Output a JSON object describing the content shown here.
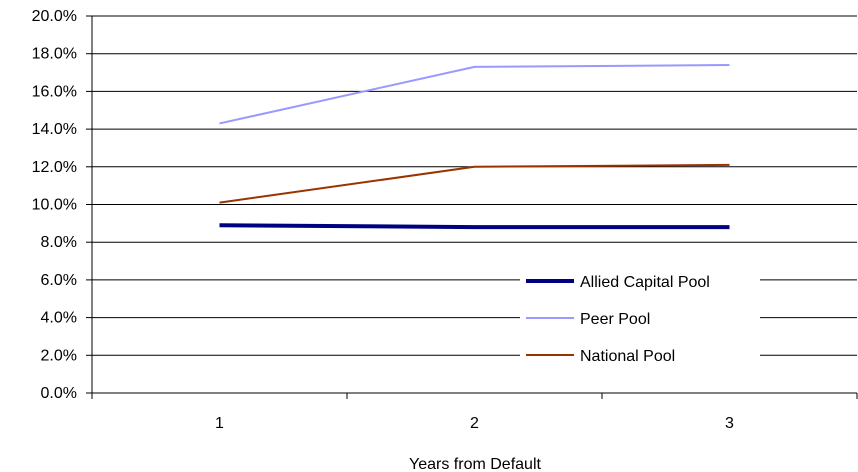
{
  "chart_data": {
    "type": "line",
    "title": "",
    "xlabel": "Years from Default",
    "ylabel": "",
    "categories": [
      "1",
      "2",
      "3"
    ],
    "ylim": [
      0,
      20
    ],
    "yticks": [
      "0.0%",
      "2.0%",
      "4.0%",
      "6.0%",
      "8.0%",
      "10.0%",
      "12.0%",
      "14.0%",
      "16.0%",
      "18.0%",
      "20.0%"
    ],
    "grid": true,
    "legend_position": "bottom-right",
    "series": [
      {
        "name": "Allied Capital Pool",
        "values": [
          8.9,
          8.8,
          8.8
        ],
        "color": "#000080",
        "stroke": "thick"
      },
      {
        "name": "Peer Pool",
        "values": [
          14.3,
          17.3,
          17.4
        ],
        "color": "#9999ff",
        "stroke": "thin"
      },
      {
        "name": "National Pool",
        "values": [
          10.1,
          12.0,
          12.1
        ],
        "color": "#993300",
        "stroke": "thin"
      }
    ]
  }
}
